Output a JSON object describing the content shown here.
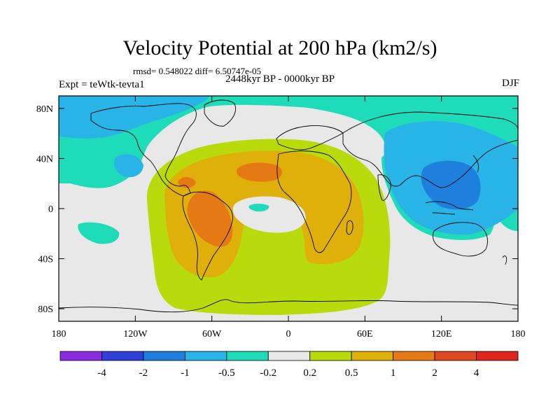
{
  "header": {
    "title": "Velocity Potential at 200 hPa (km2/s)",
    "stats": "rmsd= 0.548022 diff= 6.50747e-05",
    "experiment": "Expt = teWtk-tevta1",
    "period": "2448kyr BP - 0000kyr BP",
    "season": "DJF"
  },
  "axes": {
    "lat_labels": [
      "80N",
      "40N",
      "0",
      "40S",
      "80S"
    ],
    "lat_values": [
      80,
      40,
      0,
      -40,
      -80
    ],
    "lon_labels": [
      "180",
      "120W",
      "60W",
      "0",
      "60E",
      "120E",
      "180"
    ],
    "lon_values": [
      -180,
      -120,
      -60,
      0,
      60,
      120,
      180
    ]
  },
  "colorbar": {
    "labels": [
      "-4",
      "-2",
      "-1",
      "-0.5",
      "-0.2",
      "0.2",
      "0.5",
      "1",
      "2",
      "4"
    ],
    "colors": [
      "#8a2be2",
      "#2f3fd8",
      "#1f7fdc",
      "#28b4e6",
      "#1edcb9",
      "#e8e8e8",
      "#b9db0c",
      "#e0b00a",
      "#e57a14",
      "#e0481e",
      "#e0241e"
    ]
  },
  "field_colors": {
    "neg_weak": "#1edcb9",
    "neg_mod": "#28b4e6",
    "neg_strong": "#1f7fdc",
    "neutral": "#e8e8e8",
    "pos_weak": "#b9db0c",
    "pos_mod": "#e0b00a",
    "pos_strong": "#e57a14"
  }
}
